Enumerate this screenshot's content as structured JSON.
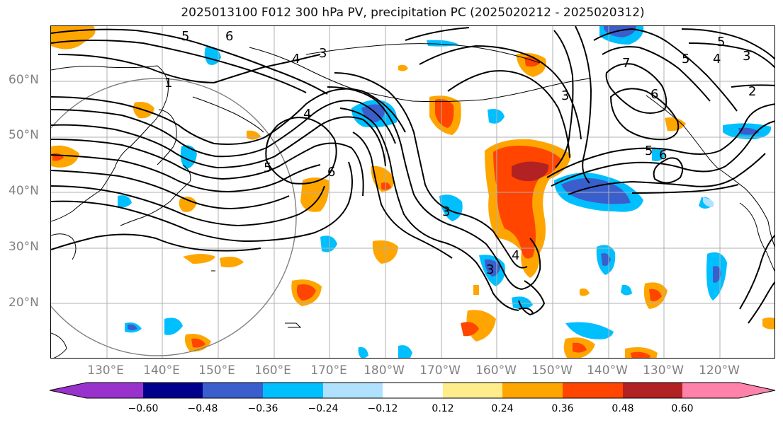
{
  "title": "2025013100 F012 300 hPa PV, precipitation PC (2025020212 - 2025020312)",
  "lat_labels": [
    "60°N",
    "50°N",
    "40°N",
    "30°N",
    "20°N"
  ],
  "lon_labels": [
    "130°E",
    "140°E",
    "150°E",
    "160°E",
    "170°E",
    "180°W",
    "170°W",
    "160°W",
    "150°W",
    "140°W",
    "130°W",
    "120°W"
  ],
  "colorbar": {
    "tick_labels": [
      "−0.60",
      "−0.48",
      "−0.36",
      "−0.24",
      "−0.12",
      "0.12",
      "0.24",
      "0.36",
      "0.48",
      "0.60"
    ],
    "colors": [
      "#9932cc",
      "#00008b",
      "#3a5fcd",
      "#00bfff",
      "#b0e2ff",
      "#ffffff",
      "#ffec8b",
      "#ffa500",
      "#ff4500",
      "#b22222",
      "#ff82ab"
    ]
  },
  "contour_labels": [
    "5",
    "6",
    "4",
    "3",
    "1",
    "5",
    "6",
    "4",
    "3",
    "3",
    "7",
    "5",
    "4",
    "3",
    "6",
    "2",
    "5",
    "6",
    "5",
    "3",
    "4"
  ],
  "colors": {
    "contour": "#000000",
    "grid": "#b0b0b0",
    "coast": "#000000",
    "circle": "#808080"
  }
}
